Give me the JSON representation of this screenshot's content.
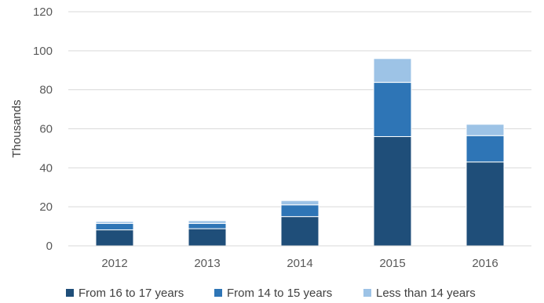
{
  "chart_data": {
    "type": "bar",
    "stacked": true,
    "categories": [
      "2012",
      "2013",
      "2014",
      "2015",
      "2016"
    ],
    "series": [
      {
        "name": "From 16 to 17 years",
        "color": "#1f4e79",
        "values": [
          8.2,
          8.8,
          15.0,
          56.0,
          43.0
        ]
      },
      {
        "name": "From 14 to 15 years",
        "color": "#2e75b6",
        "values": [
          3.3,
          2.7,
          6.0,
          27.8,
          13.5
        ]
      },
      {
        "name": "Less than 14 years",
        "color": "#9dc3e6",
        "values": [
          1.0,
          1.4,
          2.2,
          12.2,
          5.8
        ]
      }
    ],
    "ylabel": "Thousands",
    "ylim": [
      0,
      120
    ],
    "yticks": [
      0,
      20,
      40,
      60,
      80,
      100,
      120
    ],
    "grid": true,
    "legend_position": "bottom"
  }
}
